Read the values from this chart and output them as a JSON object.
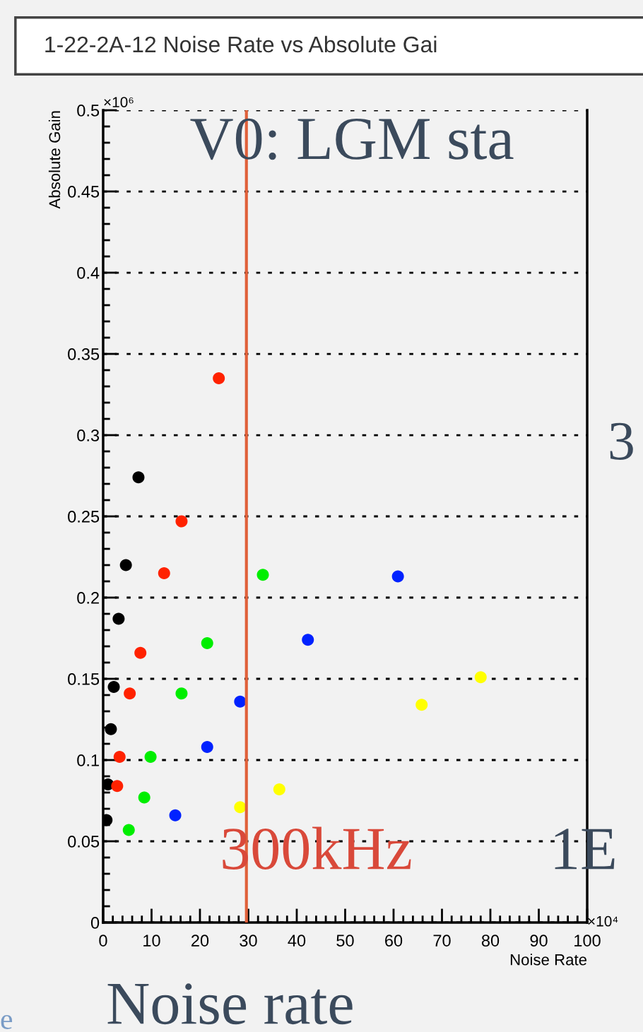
{
  "chart_data": {
    "type": "scatter",
    "title": "1-22-2A-12 Noise Rate vs Absolute Gai",
    "xlabel": "Noise Rate",
    "ylabel": "Absolute Gain",
    "xlim": [
      0,
      100
    ],
    "xticks": [
      0,
      10,
      20,
      30,
      40,
      50,
      60,
      70,
      80,
      90,
      100
    ],
    "ylim": [
      0,
      0.5
    ],
    "yticks": [
      0,
      0.05,
      0.1,
      0.15,
      0.2,
      0.25,
      0.3,
      0.35,
      0.4,
      0.45,
      0.5
    ],
    "grid": "y",
    "marker": "circle",
    "series": [
      {
        "color": "#000000",
        "x": [
          7.3,
          4.7,
          3.2,
          2.2,
          1.6,
          1.0,
          0.7
        ],
        "values": [
          0.274,
          0.22,
          0.187,
          0.145,
          0.119,
          0.085,
          0.063
        ]
      },
      {
        "color": "#ff2200",
        "x": [
          23.9,
          16.2,
          12.6,
          7.7,
          5.5,
          3.4,
          2.9
        ],
        "values": [
          0.335,
          0.247,
          0.215,
          0.166,
          0.141,
          0.102,
          0.084
        ]
      },
      {
        "color": "#00ee00",
        "x": [
          33.0,
          21.5,
          16.2,
          9.8,
          8.5,
          5.3
        ],
        "values": [
          0.214,
          0.172,
          0.141,
          0.102,
          0.077,
          0.057
        ]
      },
      {
        "color": "#0022ff",
        "x": [
          60.9,
          42.3,
          28.3,
          21.5,
          14.9
        ],
        "values": [
          0.213,
          0.174,
          0.136,
          0.108,
          0.066
        ]
      },
      {
        "color": "#ffff00",
        "x": [
          78.0,
          65.8,
          36.4,
          28.3
        ],
        "values": [
          0.151,
          0.134,
          0.082,
          0.071
        ]
      }
    ],
    "ref_lines": [
      {
        "axis": "x",
        "value": 29.6,
        "color": "#e0603a",
        "line_style": "solid"
      }
    ],
    "annotations": [
      "×10⁶",
      "×10⁴",
      "V0: LGM sta",
      "3",
      "300kHz",
      "1E",
      "Noise rate",
      "e"
    ]
  }
}
